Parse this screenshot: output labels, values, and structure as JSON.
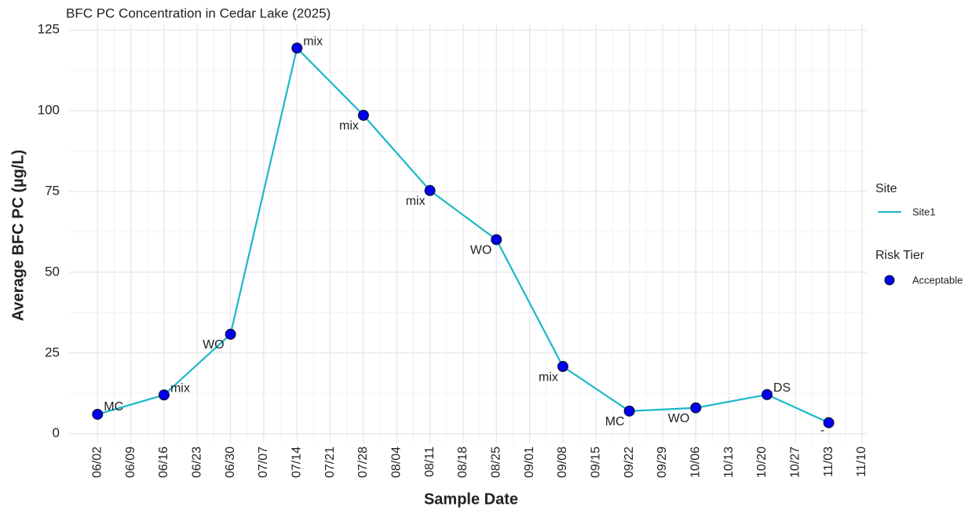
{
  "chart_data": {
    "type": "line",
    "title": "BFC PC Concentration in Cedar Lake (2025)",
    "xlabel": "Sample Date",
    "ylabel": "Average BFC PC (µg/L)",
    "x": [
      "06/02",
      "06/16",
      "06/30",
      "07/14",
      "07/28",
      "08/11",
      "08/25",
      "09/08",
      "09/22",
      "10/06",
      "10/21",
      "11/03"
    ],
    "series": [
      {
        "name": "Site1",
        "color": "#1ab8c9",
        "values": [
          6,
          12,
          30.8,
          119.4,
          98.6,
          75.3,
          60.1,
          20.8,
          7.0,
          8.0,
          12.1,
          3.4
        ]
      }
    ],
    "point_labels": [
      "MC",
      "mix",
      "WO",
      "mix",
      "mix",
      "mix",
      "WO",
      "mix",
      "MC",
      "WO",
      "DS",
      "-"
    ],
    "legend_title": "Site",
    "point_legend": {
      "title": "Risk Tier",
      "name": "Acceptable",
      "color": "#0000ee"
    },
    "xlim": [
      "05/27",
      "11/11"
    ],
    "xticks": [
      "06/02",
      "06/09",
      "06/16",
      "06/23",
      "06/30",
      "07/07",
      "07/14",
      "07/21",
      "07/28",
      "08/04",
      "08/11",
      "08/18",
      "08/25",
      "09/01",
      "09/08",
      "09/15",
      "09/22",
      "09/29",
      "10/06",
      "10/13",
      "10/20",
      "10/27",
      "11/03",
      "11/10"
    ],
    "ylim": [
      -3,
      127
    ],
    "yticks": [
      0,
      25,
      50,
      75,
      100,
      125
    ],
    "grid": true
  }
}
